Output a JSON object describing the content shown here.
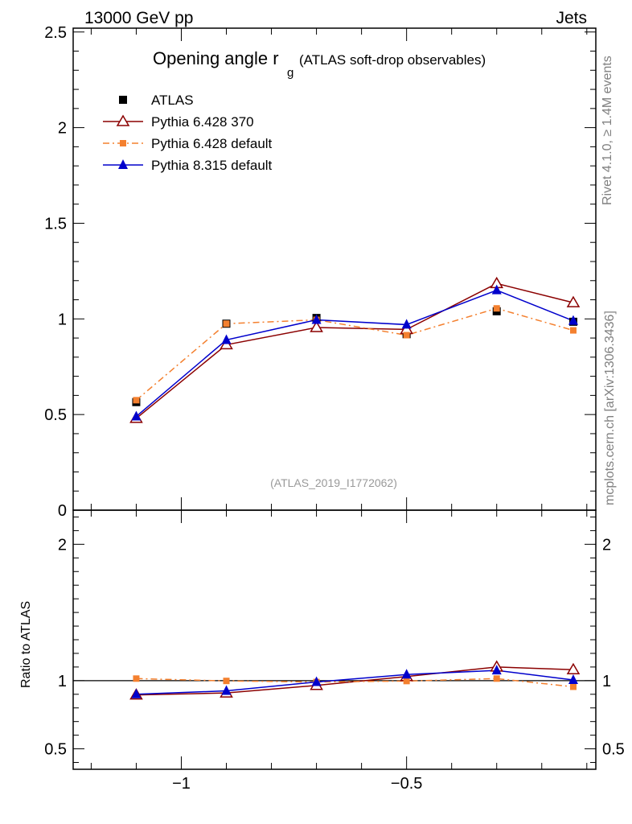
{
  "header": {
    "left": "13000 GeV pp",
    "right": "Jets"
  },
  "side_labels": {
    "rivet": "Rivet 4.1.0, ≥ 1.4M events",
    "mcplots": "mcplots.cern.ch [arXiv:1306.3436]"
  },
  "colors": {
    "atlas": "#000000",
    "pythia6_370": "#8b0000",
    "pythia6_default": "#f4802f",
    "pythia8_default": "#0000cc"
  },
  "chart_data": [
    {
      "type": "line",
      "title": "Opening angle r",
      "title_subscript": "g",
      "title_suffix": "(ATLAS soft-drop observables)",
      "watermark": "(ATLAS_2019_I1772062)",
      "xlim": [
        -1.24,
        -0.08
      ],
      "ylim": [
        0,
        2.52
      ],
      "yticks": [
        0,
        0.5,
        1,
        1.5,
        2,
        2.5
      ],
      "ytick_labels": [
        "0",
        "0.5",
        "1",
        "1.5",
        "2",
        "2.5"
      ],
      "legend_position": "top-left",
      "x": [
        -1.1,
        -0.9,
        -0.7,
        -0.5,
        -0.3,
        -0.13
      ],
      "series": [
        {
          "name": "ATLAS",
          "style": "data",
          "values": [
            0.565,
            0.975,
            1.005,
            0.92,
            1.04,
            0.985
          ]
        },
        {
          "name": "Pythia 6.428 370",
          "style": "open-triangle",
          "values": [
            0.48,
            0.865,
            0.955,
            0.945,
            1.185,
            1.085
          ]
        },
        {
          "name": "Pythia 6.428 default",
          "style": "dashdot-square",
          "values": [
            0.575,
            0.975,
            0.995,
            0.915,
            1.055,
            0.94
          ]
        },
        {
          "name": "Pythia 8.315 default",
          "style": "filled-triangle",
          "values": [
            0.49,
            0.89,
            0.995,
            0.97,
            1.15,
            0.99
          ]
        }
      ]
    },
    {
      "type": "line",
      "ylabel": "Ratio to ATLAS",
      "xlabel_ticks": [
        "−1",
        "−0.5"
      ],
      "xticks": [
        -1,
        -0.5
      ],
      "xlim": [
        -1.24,
        -0.08
      ],
      "ylim": [
        0.35,
        2.25
      ],
      "yticks": [
        0.5,
        1,
        2
      ],
      "ytick_labels": [
        "0.5",
        "1",
        "2"
      ],
      "reference_line": 1,
      "x": [
        -1.1,
        -0.9,
        -0.7,
        -0.5,
        -0.3,
        -0.13
      ],
      "series": [
        {
          "name": "Pythia 6.428 370",
          "style": "open-triangle",
          "values": [
            0.895,
            0.91,
            0.965,
            1.03,
            1.1,
            1.08
          ]
        },
        {
          "name": "Pythia 6.428 default",
          "style": "dashdot-square",
          "values": [
            1.015,
            0.998,
            0.99,
            0.997,
            1.015,
            0.955
          ]
        },
        {
          "name": "Pythia 8.315 default",
          "style": "filled-triangle",
          "values": [
            0.9,
            0.925,
            0.99,
            1.045,
            1.075,
            1.005
          ]
        }
      ]
    }
  ]
}
